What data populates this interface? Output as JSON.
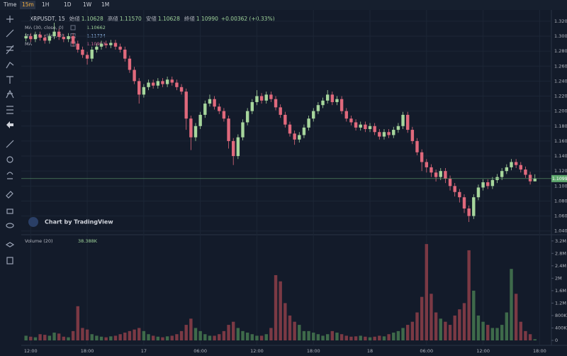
{
  "toolbar": {
    "items": [
      "Time",
      "15m",
      "1H",
      "1D",
      "1W",
      "1M"
    ],
    "active": 1
  },
  "legend": {
    "symbol": "XRPUSDT, 15",
    "items": [
      {
        "label": "始値",
        "value": "1.10628"
      },
      {
        "label": "高値",
        "value": "1.11570"
      },
      {
        "label": "安値",
        "value": "1.10628"
      },
      {
        "label": "終値",
        "value": "1.10990"
      }
    ],
    "change": "+0.00362 (+0.33%)"
  },
  "indicators": [
    {
      "name": "MA (30, close, 0)",
      "value": "1.10662",
      "color": "#9fd39a"
    },
    {
      "name": "MA (10, close, 0)",
      "value": "1.11734",
      "color": "#8fb8e8"
    },
    {
      "name": "MA",
      "value": "1.10953",
      "color": "#d0679a"
    }
  ],
  "watermark": "Chart by TradingView",
  "chart_data": [
    {
      "type": "candlestick",
      "up_color": "#a6d69c",
      "down_color": "#e0697c",
      "open": [
        1.297,
        1.3,
        1.296,
        1.302,
        1.298,
        1.294,
        1.3,
        1.306,
        1.299,
        1.296,
        1.3,
        1.29,
        1.282,
        1.275,
        1.27,
        1.282,
        1.286,
        1.29,
        1.288,
        1.291,
        1.286,
        1.282,
        1.27,
        1.255,
        1.24,
        1.222,
        1.232,
        1.238,
        1.234,
        1.24,
        1.236,
        1.242,
        1.238,
        1.232,
        1.226,
        1.19,
        1.165,
        1.18,
        1.195,
        1.21,
        1.216,
        1.206,
        1.2,
        1.19,
        1.16,
        1.14,
        1.165,
        1.185,
        1.2,
        1.212,
        1.22,
        1.214,
        1.222,
        1.216,
        1.205,
        1.195,
        1.182,
        1.17,
        1.162,
        1.168,
        1.178,
        1.19,
        1.2,
        1.208,
        1.214,
        1.222,
        1.212,
        1.216,
        1.2,
        1.19,
        1.185,
        1.178,
        1.182,
        1.176,
        1.18,
        1.172,
        1.166,
        1.172,
        1.168,
        1.175,
        1.18,
        1.195,
        1.175,
        1.16,
        1.145,
        1.132,
        1.125,
        1.118,
        1.112,
        1.12,
        1.11,
        1.1,
        1.092,
        1.085,
        1.07,
        1.06,
        1.085,
        1.098,
        1.105,
        1.1,
        1.108,
        1.112,
        1.12,
        1.125,
        1.132,
        1.128,
        1.122,
        1.115,
        1.10628
      ],
      "high": [
        1.304,
        1.304,
        1.306,
        1.306,
        1.302,
        1.304,
        1.318,
        1.31,
        1.303,
        1.304,
        1.304,
        1.294,
        1.286,
        1.279,
        1.286,
        1.29,
        1.294,
        1.294,
        1.295,
        1.295,
        1.29,
        1.286,
        1.274,
        1.259,
        1.244,
        1.236,
        1.242,
        1.242,
        1.244,
        1.244,
        1.246,
        1.246,
        1.242,
        1.236,
        1.23,
        1.194,
        1.184,
        1.199,
        1.214,
        1.222,
        1.22,
        1.21,
        1.204,
        1.194,
        1.164,
        1.169,
        1.189,
        1.204,
        1.216,
        1.228,
        1.224,
        1.226,
        1.226,
        1.22,
        1.209,
        1.199,
        1.186,
        1.174,
        1.172,
        1.182,
        1.194,
        1.204,
        1.212,
        1.218,
        1.228,
        1.226,
        1.22,
        1.22,
        1.204,
        1.194,
        1.189,
        1.186,
        1.186,
        1.184,
        1.184,
        1.176,
        1.176,
        1.176,
        1.179,
        1.184,
        1.199,
        1.199,
        1.179,
        1.164,
        1.149,
        1.136,
        1.129,
        1.122,
        1.124,
        1.124,
        1.114,
        1.104,
        1.096,
        1.089,
        1.074,
        1.089,
        1.102,
        1.109,
        1.109,
        1.112,
        1.116,
        1.124,
        1.129,
        1.136,
        1.136,
        1.132,
        1.126,
        1.119,
        1.1157
      ],
      "low": [
        1.293,
        1.292,
        1.292,
        1.294,
        1.29,
        1.29,
        1.296,
        1.295,
        1.292,
        1.292,
        1.286,
        1.278,
        1.271,
        1.262,
        1.266,
        1.278,
        1.282,
        1.284,
        1.284,
        1.282,
        1.278,
        1.266,
        1.251,
        1.236,
        1.21,
        1.218,
        1.228,
        1.23,
        1.23,
        1.232,
        1.232,
        1.234,
        1.228,
        1.222,
        1.175,
        1.148,
        1.16,
        1.176,
        1.191,
        1.206,
        1.202,
        1.196,
        1.186,
        1.15,
        1.128,
        1.136,
        1.161,
        1.181,
        1.196,
        1.208,
        1.21,
        1.21,
        1.212,
        1.201,
        1.191,
        1.178,
        1.166,
        1.155,
        1.158,
        1.164,
        1.174,
        1.186,
        1.196,
        1.204,
        1.21,
        1.208,
        1.208,
        1.196,
        1.186,
        1.181,
        1.174,
        1.174,
        1.172,
        1.172,
        1.168,
        1.162,
        1.162,
        1.164,
        1.164,
        1.171,
        1.176,
        1.171,
        1.156,
        1.141,
        1.12,
        1.118,
        1.112,
        1.106,
        1.108,
        1.104,
        1.094,
        1.086,
        1.078,
        1.064,
        1.052,
        1.056,
        1.081,
        1.094,
        1.096,
        1.096,
        1.104,
        1.108,
        1.116,
        1.121,
        1.124,
        1.118,
        1.111,
        1.102,
        1.10628
      ],
      "close": [
        1.3,
        1.296,
        1.302,
        1.298,
        1.294,
        1.3,
        1.306,
        1.299,
        1.296,
        1.3,
        1.29,
        1.282,
        1.275,
        1.27,
        1.282,
        1.286,
        1.29,
        1.288,
        1.291,
        1.286,
        1.282,
        1.27,
        1.255,
        1.24,
        1.222,
        1.232,
        1.238,
        1.234,
        1.24,
        1.236,
        1.242,
        1.238,
        1.232,
        1.226,
        1.19,
        1.165,
        1.18,
        1.195,
        1.21,
        1.216,
        1.206,
        1.2,
        1.19,
        1.16,
        1.14,
        1.165,
        1.185,
        1.2,
        1.212,
        1.22,
        1.214,
        1.222,
        1.216,
        1.205,
        1.195,
        1.182,
        1.17,
        1.162,
        1.168,
        1.178,
        1.19,
        1.2,
        1.208,
        1.214,
        1.222,
        1.212,
        1.216,
        1.2,
        1.19,
        1.185,
        1.178,
        1.182,
        1.176,
        1.18,
        1.172,
        1.166,
        1.172,
        1.168,
        1.175,
        1.18,
        1.195,
        1.175,
        1.16,
        1.145,
        1.132,
        1.125,
        1.118,
        1.112,
        1.12,
        1.11,
        1.1,
        1.092,
        1.085,
        1.07,
        1.06,
        1.085,
        1.098,
        1.105,
        1.1,
        1.108,
        1.112,
        1.12,
        1.125,
        1.132,
        1.128,
        1.122,
        1.115,
        1.10628,
        1.1099
      ],
      "ylim": [
        1.035,
        1.335
      ],
      "yticks": [
        {
          "value": 1.04,
          "label": "1.04000"
        },
        {
          "value": 1.06,
          "label": "1.06000"
        },
        {
          "value": 1.08,
          "label": "1.08000"
        },
        {
          "value": 1.1,
          "label": "1.10000"
        },
        {
          "value": 1.12,
          "label": "1.12000"
        },
        {
          "value": 1.14,
          "label": "1.14000"
        },
        {
          "value": 1.16,
          "label": "1.16000"
        },
        {
          "value": 1.18,
          "label": "1.18000"
        },
        {
          "value": 1.2,
          "label": "1.20000"
        },
        {
          "value": 1.22,
          "label": "1.22000"
        },
        {
          "value": 1.24,
          "label": "1.24000"
        },
        {
          "value": 1.26,
          "label": "1.26000"
        },
        {
          "value": 1.28,
          "label": "1.28000"
        },
        {
          "value": 1.3,
          "label": "1.30000"
        },
        {
          "value": 1.32,
          "label": "1.32000"
        }
      ],
      "last_price_label": "1.10990",
      "xlim": [
        -1,
        111.5
      ],
      "xticks": [
        {
          "value": 1,
          "label": "12:00"
        },
        {
          "value": 13,
          "label": "18:00"
        },
        {
          "value": 25,
          "label": "17"
        },
        {
          "value": 37,
          "label": "06:00"
        },
        {
          "value": 49,
          "label": "12:00"
        },
        {
          "value": 61,
          "label": "18:00"
        },
        {
          "value": 73,
          "label": "18"
        },
        {
          "value": 85,
          "label": "06:00"
        },
        {
          "value": 97,
          "label": "12:00"
        },
        {
          "value": 109,
          "label": "18:00"
        }
      ],
      "grid": true
    },
    {
      "type": "bar",
      "title": "Volume (20)",
      "value_label": "38.388K",
      "values": [
        150000,
        120000,
        100000,
        200000,
        180000,
        150000,
        250000,
        220000,
        120000,
        100000,
        300000,
        1100000,
        400000,
        350000,
        200000,
        150000,
        120000,
        100000,
        130000,
        150000,
        200000,
        250000,
        300000,
        350000,
        400000,
        300000,
        200000,
        150000,
        120000,
        100000,
        130000,
        150000,
        200000,
        300000,
        500000,
        700000,
        400000,
        300000,
        200000,
        150000,
        150000,
        200000,
        300000,
        500000,
        600000,
        400000,
        300000,
        250000,
        200000,
        150000,
        150000,
        200000,
        400000,
        2100000,
        1900000,
        1200000,
        800000,
        600000,
        500000,
        300000,
        300000,
        250000,
        200000,
        150000,
        200000,
        300000,
        250000,
        200000,
        150000,
        120000,
        130000,
        150000,
        120000,
        100000,
        120000,
        150000,
        130000,
        200000,
        250000,
        300000,
        400000,
        500000,
        600000,
        900000,
        1400000,
        3100000,
        1500000,
        900000,
        700000,
        600000,
        500000,
        800000,
        1000000,
        1200000,
        2900000,
        1600000,
        800000,
        600000,
        500000,
        400000,
        400000,
        500000,
        900000,
        2300000,
        1500000,
        600000,
        300000,
        200000,
        38388
      ],
      "up_color": "#3e6a4a",
      "down_color": "#7b3944",
      "ylim": [
        0,
        3400000
      ],
      "yticks": [
        0,
        {
          "value": 400000,
          "label": "400K"
        },
        {
          "value": 800000,
          "label": "800K"
        },
        {
          "value": 1200000,
          "label": "1.2M"
        },
        {
          "value": 1600000,
          "label": "1.6M"
        },
        {
          "value": 2000000,
          "label": "2M"
        },
        {
          "value": 2400000,
          "label": "2.4M"
        },
        {
          "value": 2800000,
          "label": "2.8M"
        },
        {
          "value": 3200000,
          "label": "3.2M"
        }
      ]
    }
  ]
}
